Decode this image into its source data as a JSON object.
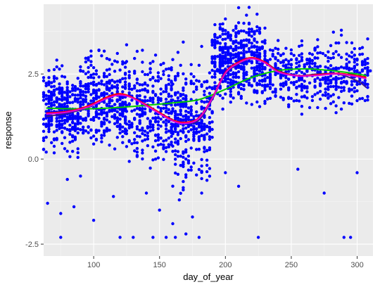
{
  "chart_data": {
    "type": "scatter",
    "xlabel": "day_of_year",
    "ylabel": "response",
    "xlim": [
      62,
      312
    ],
    "ylim": [
      -2.85,
      4.55
    ],
    "x_ticks": [
      100,
      150,
      200,
      250,
      300
    ],
    "y_ticks": [
      -2.5,
      0.0,
      2.5
    ],
    "y_tick_labels": [
      "-2.5",
      "0.0",
      "2.5"
    ],
    "grid": true,
    "legend": "none",
    "colors": {
      "panel": "#ebebeb",
      "grid_major": "#ffffff",
      "grid_minor": "#f5f5f5",
      "points": "#0000ff"
    },
    "point_bands": [
      {
        "x": [
          62,
          90
        ],
        "y_center": 1.45,
        "spread": 0.55,
        "count": 320
      },
      {
        "x": [
          90,
          125
        ],
        "y_center": 1.7,
        "spread": 0.6,
        "count": 380
      },
      {
        "x": [
          125,
          160
        ],
        "y_center": 1.5,
        "spread": 0.75,
        "count": 300
      },
      {
        "x": [
          160,
          190
        ],
        "y_center": 1.1,
        "spread": 0.8,
        "count": 320
      },
      {
        "x": [
          190,
          230
        ],
        "y_center": 2.9,
        "spread": 0.55,
        "count": 480
      },
      {
        "x": [
          230,
          310
        ],
        "y_center": 2.5,
        "spread": 0.45,
        "count": 460
      }
    ],
    "outlier_points": [
      {
        "x": 65,
        "y": -1.3
      },
      {
        "x": 75,
        "y": -2.3
      },
      {
        "x": 75,
        "y": -1.6
      },
      {
        "x": 80,
        "y": -0.6
      },
      {
        "x": 85,
        "y": -1.4
      },
      {
        "x": 90,
        "y": -0.5
      },
      {
        "x": 100,
        "y": -1.8
      },
      {
        "x": 115,
        "y": -1.1
      },
      {
        "x": 120,
        "y": -2.3
      },
      {
        "x": 130,
        "y": -2.3
      },
      {
        "x": 140,
        "y": -1.0
      },
      {
        "x": 145,
        "y": -2.3
      },
      {
        "x": 150,
        "y": -1.5
      },
      {
        "x": 155,
        "y": -2.3
      },
      {
        "x": 160,
        "y": -1.9
      },
      {
        "x": 162,
        "y": -2.3
      },
      {
        "x": 165,
        "y": -1.2
      },
      {
        "x": 170,
        "y": -2.2
      },
      {
        "x": 175,
        "y": -1.7
      },
      {
        "x": 180,
        "y": -2.3
      },
      {
        "x": 182,
        "y": -1.0
      },
      {
        "x": 200,
        "y": -0.4
      },
      {
        "x": 210,
        "y": -0.8
      },
      {
        "x": 225,
        "y": -2.3
      },
      {
        "x": 255,
        "y": -0.3
      },
      {
        "x": 275,
        "y": -1.0
      },
      {
        "x": 290,
        "y": -2.3
      },
      {
        "x": 295,
        "y": -2.3
      },
      {
        "x": 300,
        "y": -0.4
      }
    ],
    "series": [
      {
        "color": "#3a1a8a",
        "x": [
          64,
          80,
          95,
          110,
          120,
          130,
          145,
          160,
          170,
          180,
          190,
          200,
          210,
          220,
          230,
          240,
          255,
          270,
          285,
          300,
          307
        ],
        "y": [
          1.25,
          1.35,
          1.5,
          1.8,
          1.9,
          1.8,
          1.45,
          1.12,
          1.05,
          1.15,
          1.75,
          2.5,
          2.8,
          2.95,
          2.85,
          2.6,
          2.45,
          2.5,
          2.5,
          2.3,
          2.1
        ]
      },
      {
        "color": "#00c800",
        "x": [
          64,
          80,
          100,
          120,
          140,
          160,
          180,
          200,
          220,
          240,
          260,
          280,
          300,
          307
        ],
        "y": [
          1.5,
          1.48,
          1.48,
          1.52,
          1.58,
          1.65,
          1.75,
          2.05,
          2.4,
          2.6,
          2.65,
          2.6,
          2.5,
          2.45
        ]
      },
      {
        "color": "#ff0000",
        "x": [
          64,
          80,
          95,
          110,
          120,
          130,
          145,
          160,
          170,
          180,
          190,
          200,
          210,
          220,
          230,
          240,
          255,
          270,
          285,
          300,
          307
        ],
        "y": [
          1.35,
          1.4,
          1.55,
          1.82,
          1.92,
          1.8,
          1.48,
          1.15,
          1.08,
          1.22,
          1.8,
          2.55,
          2.85,
          2.98,
          2.85,
          2.58,
          2.45,
          2.48,
          2.52,
          2.45,
          2.4
        ]
      },
      {
        "color": "#e000e0",
        "x": [
          64,
          80,
          95,
          110,
          120,
          130,
          145,
          160,
          170,
          180,
          190,
          200,
          210,
          220,
          230,
          240,
          255,
          270,
          285,
          300,
          307
        ],
        "y": [
          1.32,
          1.38,
          1.52,
          1.78,
          1.88,
          1.78,
          1.45,
          1.12,
          1.05,
          1.2,
          1.78,
          2.52,
          2.82,
          2.95,
          2.82,
          2.56,
          2.44,
          2.46,
          2.5,
          2.42,
          2.36
        ]
      }
    ]
  }
}
